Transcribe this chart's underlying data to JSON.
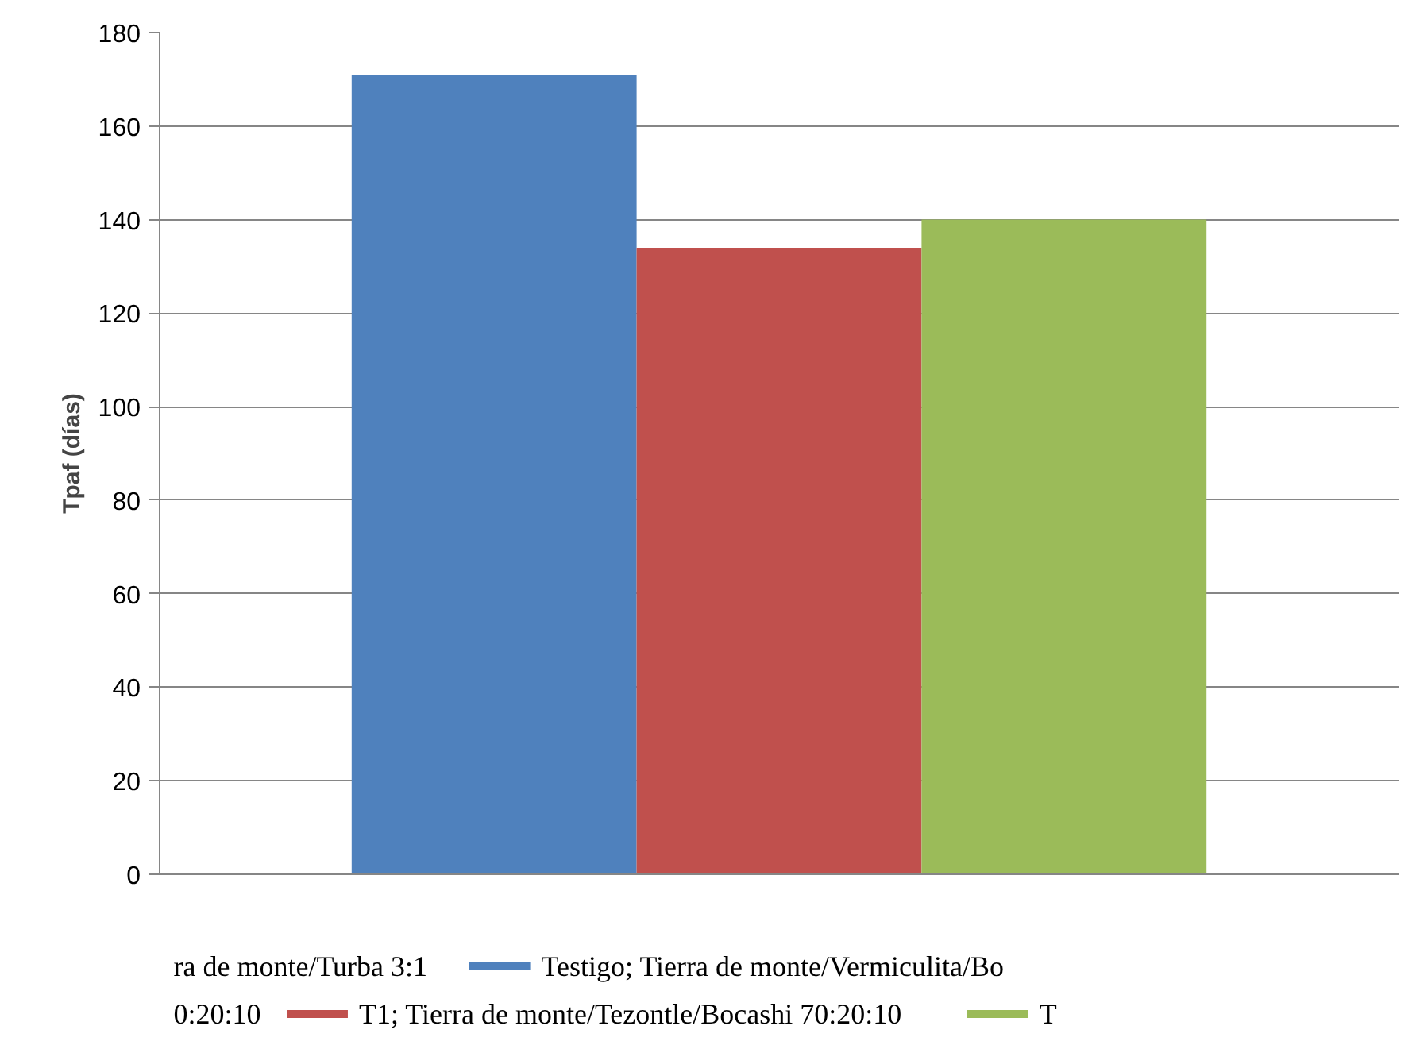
{
  "chart_data": {
    "type": "bar",
    "ylabel": "Tpaf (días)",
    "categories": [
      null
    ],
    "series": [
      {
        "name": "Testigo; Tierra de monte/Vermiculita/Bo",
        "color": "#4f81bd",
        "values": [
          171
        ]
      },
      {
        "name": "T1; Tierra de monte/Tezontle/Bocashi 70:20:10",
        "color": "#c0504d",
        "values": [
          134
        ]
      },
      {
        "name": "T",
        "color": "#9bbb59",
        "values": [
          140
        ]
      }
    ],
    "annotations": [
      "ra de monte/Turba 3:1",
      "0:20:10"
    ],
    "ylim": [
      0,
      180
    ],
    "yticks": [
      0,
      20,
      40,
      60,
      80,
      100,
      120,
      140,
      160,
      180
    ],
    "grid": "y",
    "legend": "bottom"
  }
}
